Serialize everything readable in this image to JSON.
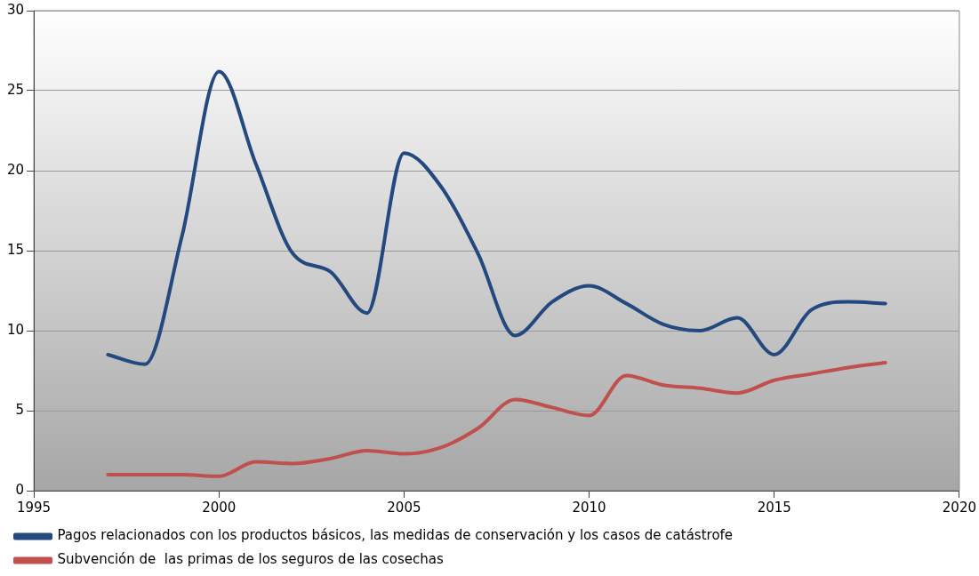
{
  "chart_data": {
    "type": "line",
    "x": [
      1997,
      1998,
      1999,
      2000,
      2001,
      2002,
      2003,
      2004,
      2005,
      2006,
      2007,
      2008,
      2009,
      2010,
      2011,
      2012,
      2013,
      2014,
      2015,
      2016,
      2017,
      2018
    ],
    "series": [
      {
        "name": "Pagos relacionados con los productos básicos, las medidas de conservación y los casos de catástrofe",
        "color": "#23497e",
        "values": [
          8.5,
          7.9,
          15.9,
          26.2,
          20.4,
          14.8,
          13.7,
          11.1,
          21.1,
          19.0,
          14.8,
          9.7,
          11.8,
          12.8,
          11.7,
          10.4,
          10.0,
          10.8,
          8.5,
          11.3,
          11.8,
          11.7
        ]
      },
      {
        "name": "Subvención de  las primas de los seguros de las cosechas",
        "color": "#c0504d",
        "values": [
          1.0,
          1.0,
          1.0,
          0.9,
          1.8,
          1.7,
          2.0,
          2.5,
          2.3,
          2.7,
          3.9,
          5.7,
          5.2,
          4.7,
          7.2,
          6.6,
          6.4,
          6.1,
          6.9,
          7.3,
          7.7,
          8.0
        ]
      }
    ],
    "xlim": [
      1995,
      2020
    ],
    "xticks": [
      1995,
      2000,
      2005,
      2010,
      2015,
      2020
    ],
    "ylim": [
      0,
      30
    ],
    "yticks": [
      0,
      5,
      10,
      15,
      20,
      25,
      30
    ],
    "grid": "y",
    "legend": "bottom",
    "marker": "none",
    "line_style": "solid"
  }
}
